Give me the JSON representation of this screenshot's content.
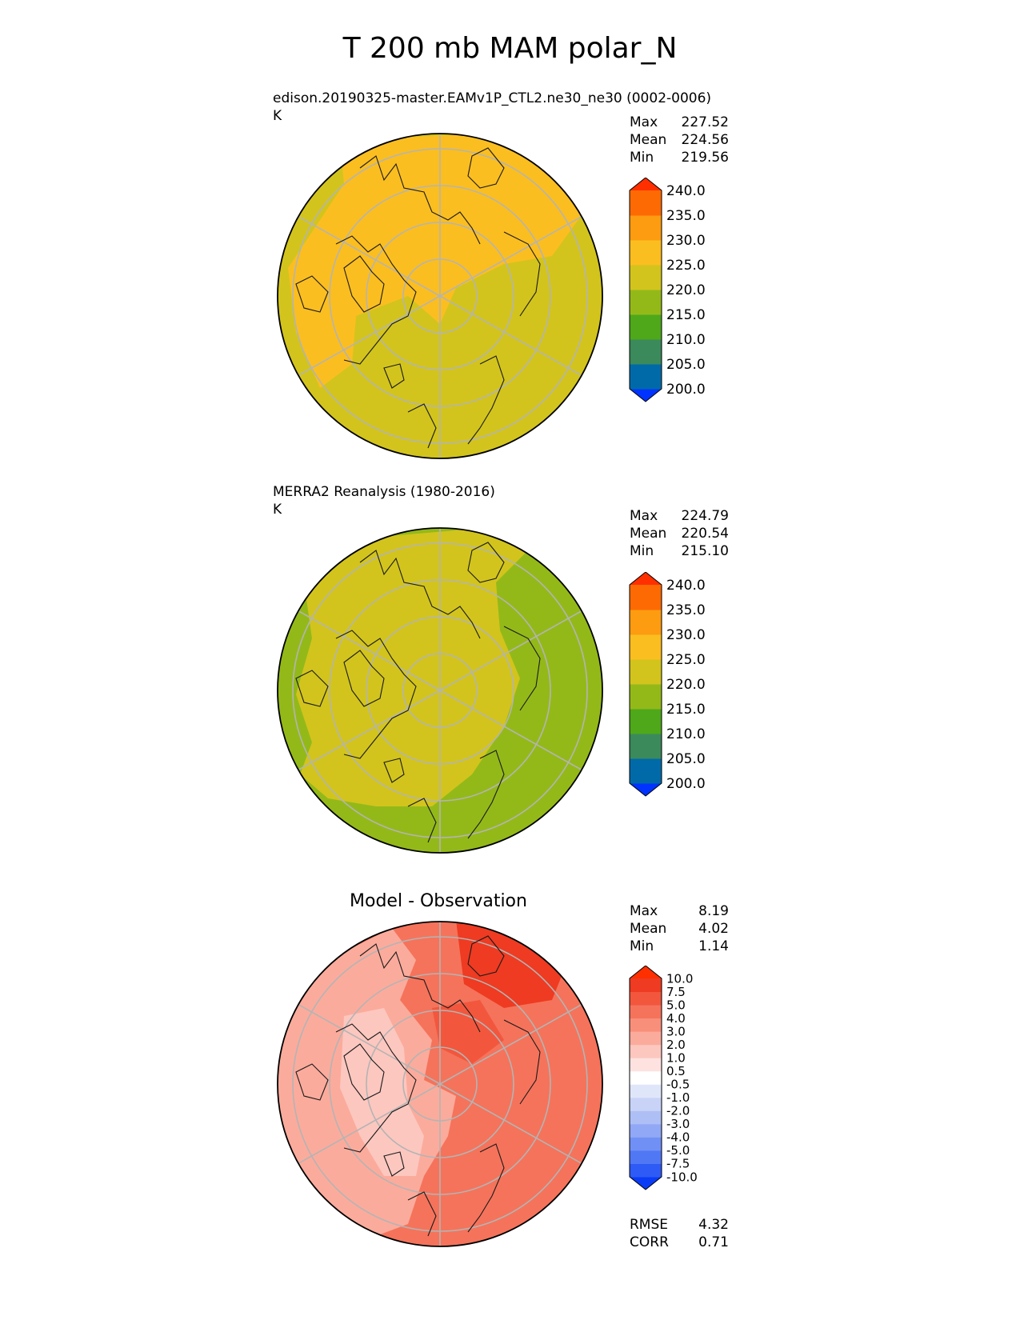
{
  "figure": {
    "title": "T 200 mb MAM polar_N"
  },
  "panels": [
    {
      "id": "test",
      "title": "edison.20190325-master.EAMv1P_CTL2.ne30_ne30 (0002-0006)",
      "units": "K",
      "stats": [
        {
          "label": "Max",
          "value": "227.52"
        },
        {
          "label": "Mean",
          "value": "224.56"
        },
        {
          "label": "Min",
          "value": "219.56"
        }
      ]
    },
    {
      "id": "reference",
      "title": "MERRA2 Reanalysis (1980-2016)",
      "units": "K",
      "stats": [
        {
          "label": "Max",
          "value": "224.79"
        },
        {
          "label": "Mean",
          "value": "220.54"
        },
        {
          "label": "Min",
          "value": "215.10"
        }
      ]
    },
    {
      "id": "diff",
      "title": "Model - Observation",
      "stats": [
        {
          "label": "Max",
          "value": "8.19"
        },
        {
          "label": "Mean",
          "value": "4.02"
        },
        {
          "label": "Min",
          "value": "1.14"
        }
      ],
      "metrics": [
        {
          "label": "RMSE",
          "value": "4.32"
        },
        {
          "label": "CORR",
          "value": "0.71"
        }
      ]
    }
  ],
  "chart_data": [
    {
      "type": "heatmap",
      "projection": "north-polar-stereographic",
      "title": "edison.20190325-master.EAMv1P_CTL2.ne30_ne30 (0002-0006)",
      "units": "K",
      "colorbar": {
        "levels": [
          "200.0",
          "205.0",
          "210.0",
          "215.0",
          "220.0",
          "225.0",
          "230.0",
          "235.0",
          "240.0"
        ],
        "colors": [
          "#0033ff",
          "#006aa8",
          "#3b8a5c",
          "#4ea81a",
          "#93b919",
          "#d2c41d",
          "#fbbe20",
          "#fd9c10",
          "#fd6a03",
          "#ff2f00"
        ],
        "extend": "both"
      },
      "dominant_bins": [
        "220-225",
        "225-230"
      ]
    },
    {
      "type": "heatmap",
      "projection": "north-polar-stereographic",
      "title": "MERRA2 Reanalysis (1980-2016)",
      "units": "K",
      "colorbar": {
        "levels": [
          "200.0",
          "205.0",
          "210.0",
          "215.0",
          "220.0",
          "225.0",
          "230.0",
          "235.0",
          "240.0"
        ],
        "colors": [
          "#0033ff",
          "#006aa8",
          "#3b8a5c",
          "#4ea81a",
          "#93b919",
          "#d2c41d",
          "#fbbe20",
          "#fd9c10",
          "#fd6a03",
          "#ff2f00"
        ],
        "extend": "both"
      },
      "dominant_bins": [
        "215-220",
        "220-225"
      ]
    },
    {
      "type": "heatmap",
      "projection": "north-polar-stereographic",
      "title": "Model - Observation",
      "colorbar": {
        "levels": [
          "-10.0",
          "-7.5",
          "-5.0",
          "-4.0",
          "-3.0",
          "-2.0",
          "-1.0",
          "-0.5",
          "0.5",
          "1.0",
          "2.0",
          "3.0",
          "4.0",
          "5.0",
          "7.5",
          "10.0"
        ],
        "colors": [
          "#0a3cf5",
          "#2e5af5",
          "#5078f5",
          "#7090f5",
          "#90a8f5",
          "#aebff5",
          "#c8d3f7",
          "#e0e6fa",
          "#ffffff",
          "#fde2e0",
          "#fcc7bf",
          "#fbab9c",
          "#f88f7b",
          "#f5735b",
          "#f2573d",
          "#ee3b22",
          "#ff2f00"
        ],
        "extend": "both"
      },
      "dominant_bins": [
        "1.0-2.0",
        "2.0-3.0",
        "3.0-4.0",
        "4.0-5.0",
        "5.0-7.5"
      ]
    }
  ]
}
